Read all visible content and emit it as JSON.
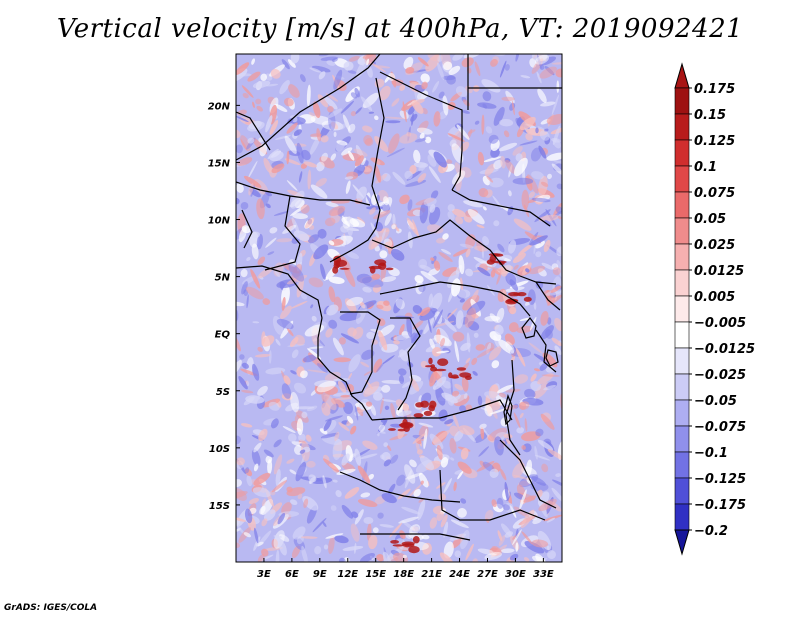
{
  "title": "Vertical velocity [m/s] at 400hPa, VT: 2019092421",
  "credit": "GrADS: IGES/COLA",
  "map": {
    "lon_range": [
      0,
      35
    ],
    "lat_range": [
      -20,
      24.5
    ],
    "lon_ticks": [
      {
        "value": 3,
        "label": "3E"
      },
      {
        "value": 6,
        "label": "6E"
      },
      {
        "value": 9,
        "label": "9E"
      },
      {
        "value": 12,
        "label": "12E"
      },
      {
        "value": 15,
        "label": "15E"
      },
      {
        "value": 18,
        "label": "18E"
      },
      {
        "value": 21,
        "label": "21E"
      },
      {
        "value": 24,
        "label": "24E"
      },
      {
        "value": 27,
        "label": "27E"
      },
      {
        "value": 30,
        "label": "30E"
      },
      {
        "value": 33,
        "label": "33E"
      }
    ],
    "lat_ticks": [
      {
        "value": 20,
        "label": "20N"
      },
      {
        "value": 15,
        "label": "15N"
      },
      {
        "value": 10,
        "label": "10N"
      },
      {
        "value": 5,
        "label": "5N"
      },
      {
        "value": 0,
        "label": "EQ"
      },
      {
        "value": -5,
        "label": "5S"
      },
      {
        "value": -10,
        "label": "10S"
      },
      {
        "value": -15,
        "label": "15S"
      }
    ],
    "colors": {
      "background": "#b9b9f2",
      "positive": "#f29a9a",
      "strong_positive": "#b21818",
      "negative": "#7f7fe8",
      "boundary": "#000000"
    }
  },
  "colorbar": {
    "levels": [
      {
        "label": "0.175",
        "color": "#9e1212"
      },
      {
        "label": "0.15",
        "color": "#b81c1c"
      },
      {
        "label": "0.125",
        "color": "#d02e2e"
      },
      {
        "label": "0.1",
        "color": "#e04848"
      },
      {
        "label": "0.075",
        "color": "#ea6a6a"
      },
      {
        "label": "0.05",
        "color": "#f08c8c"
      },
      {
        "label": "0.025",
        "color": "#f6b0b0"
      },
      {
        "label": "0.0125",
        "color": "#fad2d2"
      },
      {
        "label": "0.005",
        "color": "#fdeaea"
      },
      {
        "label": "−0.005",
        "color": "#ffffff"
      },
      {
        "label": "−0.0125",
        "color": "#e6e6fb"
      },
      {
        "label": "−0.025",
        "color": "#ccccf6"
      },
      {
        "label": "−0.05",
        "color": "#aeaef2"
      },
      {
        "label": "−0.075",
        "color": "#9090ec"
      },
      {
        "label": "−0.1",
        "color": "#7272e4"
      },
      {
        "label": "−0.125",
        "color": "#5050d8"
      },
      {
        "label": "−0.175",
        "color": "#3030c4"
      },
      {
        "label": "−0.2",
        "color": "#1a1aa8"
      }
    ],
    "top_color": "#a81414",
    "bottom_color": "#16169a"
  }
}
